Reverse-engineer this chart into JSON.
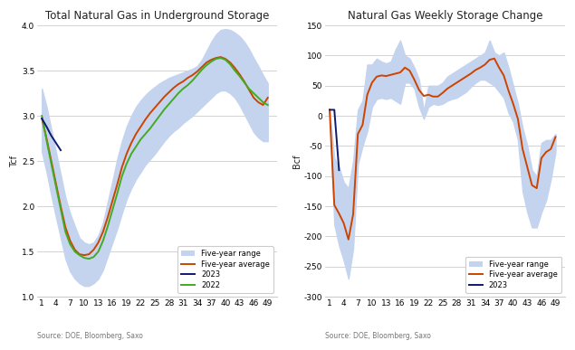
{
  "chart1": {
    "title": "Total Natural Gas in Underground Storage",
    "ylabel": "Tcf",
    "ylim": [
      1.0,
      4.0
    ],
    "yticks": [
      1.0,
      1.5,
      2.0,
      2.5,
      3.0,
      3.5,
      4.0
    ],
    "xticks": [
      1,
      4,
      7,
      10,
      13,
      16,
      19,
      22,
      25,
      28,
      31,
      34,
      37,
      40,
      43,
      46,
      49
    ],
    "source": "Source: DOE, Bloomberg, Saxo",
    "range_color": "#c5d4ee",
    "avg_color": "#cc4400",
    "yr2023_color": "#0d1a6e",
    "yr2022_color": "#44aa22",
    "five_year_high": [
      3.3,
      3.1,
      2.85,
      2.6,
      2.35,
      2.1,
      1.92,
      1.78,
      1.65,
      1.6,
      1.58,
      1.6,
      1.68,
      1.82,
      2.05,
      2.28,
      2.52,
      2.72,
      2.88,
      3.0,
      3.1,
      3.17,
      3.23,
      3.28,
      3.32,
      3.36,
      3.39,
      3.42,
      3.44,
      3.46,
      3.48,
      3.5,
      3.52,
      3.55,
      3.62,
      3.72,
      3.82,
      3.9,
      3.95,
      3.96,
      3.95,
      3.92,
      3.88,
      3.82,
      3.74,
      3.64,
      3.55,
      3.45,
      3.36
    ],
    "five_year_low": [
      2.6,
      2.38,
      2.12,
      1.88,
      1.65,
      1.42,
      1.28,
      1.2,
      1.15,
      1.12,
      1.12,
      1.15,
      1.2,
      1.3,
      1.45,
      1.6,
      1.75,
      1.92,
      2.08,
      2.2,
      2.3,
      2.38,
      2.46,
      2.52,
      2.58,
      2.65,
      2.72,
      2.78,
      2.83,
      2.87,
      2.92,
      2.96,
      3.0,
      3.05,
      3.1,
      3.15,
      3.2,
      3.25,
      3.28,
      3.28,
      3.25,
      3.2,
      3.12,
      3.02,
      2.92,
      2.82,
      2.76,
      2.72,
      2.72
    ],
    "five_year_avg": [
      2.97,
      2.75,
      2.5,
      2.25,
      2.0,
      1.77,
      1.62,
      1.52,
      1.47,
      1.46,
      1.47,
      1.52,
      1.6,
      1.72,
      1.88,
      2.06,
      2.24,
      2.43,
      2.58,
      2.7,
      2.8,
      2.88,
      2.96,
      3.03,
      3.09,
      3.15,
      3.21,
      3.26,
      3.31,
      3.35,
      3.38,
      3.42,
      3.45,
      3.49,
      3.54,
      3.59,
      3.62,
      3.64,
      3.65,
      3.63,
      3.59,
      3.53,
      3.46,
      3.38,
      3.29,
      3.2,
      3.15,
      3.12,
      3.2
    ],
    "yr2023": [
      2.97,
      2.88,
      2.78,
      2.7,
      2.62,
      null,
      null,
      null,
      null,
      null,
      null,
      null,
      null,
      null,
      null,
      null,
      null,
      null,
      null,
      null,
      null,
      null,
      null,
      null,
      null,
      null,
      null,
      null,
      null,
      null,
      null,
      null,
      null,
      null,
      null,
      null,
      null,
      null,
      null,
      null,
      null,
      null,
      null,
      null,
      null,
      null,
      null,
      null,
      null
    ],
    "yr2022": [
      3.0,
      2.73,
      2.47,
      2.22,
      1.97,
      1.72,
      1.58,
      1.5,
      1.46,
      1.43,
      1.42,
      1.44,
      1.5,
      1.62,
      1.78,
      1.96,
      2.14,
      2.33,
      2.47,
      2.58,
      2.66,
      2.74,
      2.8,
      2.86,
      2.93,
      3.0,
      3.07,
      3.13,
      3.19,
      3.25,
      3.3,
      3.34,
      3.39,
      3.45,
      3.51,
      3.56,
      3.6,
      3.63,
      3.64,
      3.62,
      3.57,
      3.5,
      3.44,
      3.37,
      3.3,
      3.25,
      3.2,
      3.15,
      3.12
    ]
  },
  "chart2": {
    "title": "Natural Gas Weekly Storage Change",
    "ylabel": "Bcf",
    "ylim": [
      -300,
      150
    ],
    "yticks": [
      -300,
      -250,
      -200,
      -150,
      -100,
      -50,
      0,
      50,
      100,
      150
    ],
    "xticks": [
      1,
      4,
      7,
      10,
      13,
      16,
      19,
      22,
      25,
      28,
      31,
      34,
      37,
      40,
      43,
      46,
      49
    ],
    "source": "Source: DOE, Bloomberg, Saxo",
    "range_color": "#c5d4ee",
    "avg_color": "#cc4400",
    "yr2023_color": "#0d1a6e",
    "five_year_high": [
      10,
      -70,
      -85,
      -110,
      -120,
      -75,
      10,
      25,
      85,
      85,
      95,
      90,
      87,
      90,
      110,
      125,
      100,
      95,
      80,
      60,
      8,
      50,
      50,
      50,
      55,
      65,
      70,
      75,
      80,
      85,
      90,
      95,
      100,
      105,
      125,
      105,
      100,
      105,
      80,
      50,
      20,
      -20,
      -50,
      -90,
      -100,
      -45,
      -40,
      -40,
      -30
    ],
    "five_year_low": [
      10,
      -180,
      -215,
      -240,
      -270,
      -220,
      -80,
      -50,
      -25,
      15,
      28,
      30,
      28,
      30,
      25,
      20,
      55,
      55,
      45,
      15,
      -5,
      15,
      20,
      18,
      20,
      25,
      28,
      30,
      35,
      40,
      48,
      55,
      60,
      60,
      55,
      50,
      40,
      30,
      5,
      -10,
      -40,
      -125,
      -160,
      -185,
      -185,
      -160,
      -140,
      -105,
      -60
    ],
    "five_year_avg": [
      10,
      -148,
      -162,
      -178,
      -205,
      -163,
      -30,
      -15,
      35,
      55,
      65,
      67,
      66,
      68,
      70,
      72,
      80,
      75,
      60,
      43,
      33,
      35,
      32,
      32,
      38,
      45,
      50,
      55,
      60,
      65,
      70,
      76,
      80,
      85,
      93,
      95,
      80,
      67,
      42,
      20,
      -5,
      -55,
      -85,
      -115,
      -120,
      -70,
      -60,
      -55,
      -35
    ],
    "yr2023": [
      10,
      10,
      -90,
      null,
      null,
      null,
      null,
      null,
      null,
      null,
      null,
      null,
      null,
      null,
      null,
      null,
      null,
      null,
      null,
      null,
      null,
      null,
      null,
      null,
      null,
      null,
      null,
      null,
      null,
      null,
      null,
      null,
      null,
      null,
      null,
      null,
      null,
      null,
      null,
      null,
      null,
      null,
      null,
      null,
      null,
      null,
      null,
      null,
      null
    ]
  }
}
